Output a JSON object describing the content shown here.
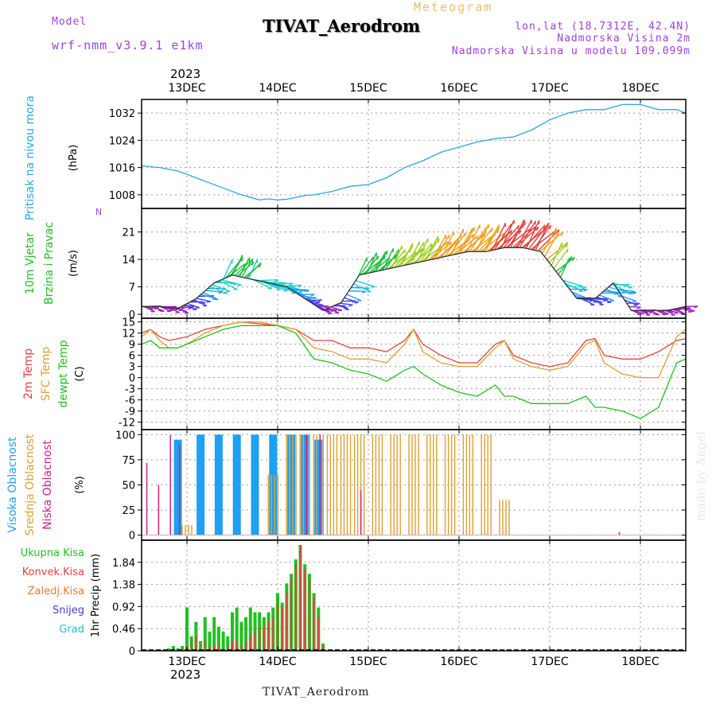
{
  "header": {
    "title": "TIVAT_Aerodrom",
    "meteogram": "Meteogram",
    "model_label": "Model",
    "model_name": "wrf-nmm_v3.9.1  e1km",
    "lonlat": "lon,lat (18.7312E, 42.4N)",
    "elevation": "Nadmorska Visina 2m",
    "model_elevation": "Nadmorska Visina u modelu 109.099m",
    "made_by": "made by Angel",
    "footer": "TIVAT_Aerodrom",
    "year_top": "2023",
    "year_bottom": "2023"
  },
  "colors": {
    "pressure": "#2aa6e6",
    "t2m": "#e84040",
    "sfc": "#e0a030",
    "dewpt": "#20c020",
    "high_cloud": "#20a0f0",
    "mid_cloud": "#e0a030",
    "low_cloud": "#d0208a",
    "total_precip": "#20c020",
    "conv_precip": "#e84040"
  },
  "chart_data": [
    {
      "type": "line",
      "name": "pressure",
      "ylabel_lines": [
        "Pritisak na nivou mora",
        "(hPa)"
      ],
      "days": [
        "13DEC",
        "14DEC",
        "15DEC",
        "16DEC",
        "17DEC",
        "18DEC"
      ],
      "yticks": [
        "1008",
        "1016",
        "1024",
        "1032"
      ],
      "ylim": [
        1004,
        1036
      ],
      "xlim": [
        -0.5,
        5.5
      ],
      "x": [
        -0.5,
        -0.3,
        -0.1,
        0.0,
        0.2,
        0.4,
        0.6,
        0.8,
        0.9,
        1.0,
        1.1,
        1.2,
        1.3,
        1.4,
        1.6,
        1.8,
        2.0,
        2.2,
        2.4,
        2.6,
        2.8,
        3.0,
        3.2,
        3.4,
        3.6,
        3.8,
        4.0,
        4.2,
        4.4,
        4.6,
        4.8,
        5.0,
        5.2,
        5.4,
        5.5
      ],
      "values": [
        1016.5,
        1016,
        1015,
        1014,
        1012,
        1010,
        1008,
        1006.5,
        1006.8,
        1006.5,
        1006.7,
        1007.2,
        1007.8,
        1008,
        1009,
        1010.5,
        1011,
        1013,
        1016,
        1018,
        1020.5,
        1022,
        1023.5,
        1024.5,
        1025,
        1027,
        1030,
        1032,
        1033,
        1033,
        1034.5,
        1034.5,
        1033,
        1033,
        1032
      ]
    },
    {
      "type": "scatter",
      "name": "wind",
      "ylabel_lines": [
        "10m Vjetar",
        "Brzina i Pravac",
        "(m/s)"
      ],
      "compass": "N",
      "yticks": [
        "0",
        "7",
        "14",
        "21"
      ],
      "ylim": [
        -1,
        27
      ],
      "xlim": [
        -0.5,
        5.5
      ],
      "x": [
        -0.5,
        -0.3,
        -0.1,
        0.1,
        0.3,
        0.5,
        0.7,
        0.9,
        1.1,
        1.3,
        1.5,
        1.7,
        1.9,
        2.1,
        2.3,
        2.5,
        2.7,
        2.9,
        3.1,
        3.3,
        3.5,
        3.7,
        3.9,
        4.1,
        4.3,
        4.5,
        4.7,
        4.9,
        5.1,
        5.3,
        5.5
      ],
      "speed": [
        2,
        2,
        1.5,
        4,
        8,
        10,
        9,
        8,
        7,
        4,
        1,
        3,
        10,
        11,
        12,
        13,
        14,
        15,
        16,
        16,
        17,
        17,
        16,
        10,
        4,
        4,
        8,
        1,
        1,
        1,
        2
      ]
    },
    {
      "type": "line",
      "name": "temperature",
      "ylabel_lines": [
        "2m Temp",
        "SFC Temp",
        "dewpt Temp",
        "(C)"
      ],
      "yticks": [
        "15",
        "12",
        "9",
        "6",
        "3",
        "0",
        "-3",
        "-6",
        "-9",
        "-12"
      ],
      "ylim": [
        -14,
        16
      ],
      "xlim": [
        -0.5,
        5.5
      ],
      "x": [
        -0.5,
        -0.4,
        -0.3,
        -0.2,
        -0.1,
        0.0,
        0.2,
        0.4,
        0.6,
        0.8,
        1.0,
        1.2,
        1.4,
        1.6,
        1.7,
        1.8,
        2.0,
        2.2,
        2.4,
        2.5,
        2.6,
        2.8,
        3.0,
        3.2,
        3.4,
        3.5,
        3.6,
        3.8,
        4.0,
        4.2,
        4.4,
        4.5,
        4.6,
        4.8,
        5.0,
        5.2,
        5.4,
        5.5
      ],
      "series": [
        {
          "name": "2m Temp",
          "values": [
            12,
            13,
            11,
            10,
            10.5,
            11,
            13,
            14,
            15,
            14.5,
            14,
            13,
            10,
            10,
            9,
            8,
            8,
            7,
            10,
            13,
            9,
            6,
            4,
            4,
            9,
            10,
            6,
            4,
            3,
            4,
            10,
            10.5,
            6,
            5,
            5,
            7,
            10,
            10.5
          ]
        },
        {
          "name": "SFC Temp",
          "values": [
            11,
            13,
            10,
            8,
            8,
            9,
            12,
            14,
            15,
            15,
            14,
            13,
            8,
            7,
            6,
            5,
            5,
            4,
            9,
            13,
            7,
            4,
            3,
            3,
            8,
            10,
            5,
            3,
            2,
            3,
            9,
            10,
            4,
            1,
            0,
            0,
            11,
            13
          ]
        },
        {
          "name": "dewpt Temp",
          "values": [
            9,
            10,
            8,
            8,
            8,
            9,
            11,
            13,
            14,
            14,
            14,
            12,
            5,
            4,
            3,
            2,
            1,
            -1,
            2,
            3,
            1,
            -2,
            -4,
            -5,
            -2,
            -5,
            -5,
            -7,
            -7,
            -7,
            -5,
            -8,
            -8,
            -9,
            -11,
            -8,
            4,
            5
          ]
        }
      ]
    },
    {
      "type": "bar",
      "name": "clouds",
      "ylabel_lines": [
        "Visoka Oblacnost",
        "Srednja Oblacnost",
        "Niska Oblacnost",
        "(%)"
      ],
      "yticks": [
        "0",
        "25",
        "50",
        "75",
        "100"
      ],
      "ylim": [
        -5,
        105
      ],
      "xlim": [
        -0.5,
        5.5
      ],
      "x": [
        -0.46,
        -0.33,
        -0.2,
        -0.1,
        0.0,
        0.15,
        0.35,
        0.55,
        0.75,
        0.95,
        1.15,
        1.3,
        1.45,
        1.6,
        1.75,
        1.9,
        2.1,
        2.3,
        2.5,
        2.7,
        2.9,
        3.1,
        3.3,
        3.5,
        3.75,
        4.0,
        4.25,
        4.5,
        4.75,
        5.0,
        5.25,
        5.45
      ],
      "series": [
        {
          "name": "Visoka Oblacnost",
          "values": [
            0,
            0,
            0,
            95,
            0,
            100,
            100,
            100,
            100,
            100,
            100,
            100,
            95,
            0,
            0,
            0,
            0,
            0,
            0,
            0,
            0,
            0,
            0,
            0,
            0,
            0,
            0,
            0,
            0,
            0,
            0,
            0
          ]
        },
        {
          "name": "Srednja Oblacnost",
          "values": [
            0,
            0,
            0,
            0,
            10,
            0,
            0,
            0,
            0,
            60,
            100,
            100,
            100,
            100,
            100,
            100,
            100,
            100,
            100,
            100,
            100,
            100,
            100,
            35,
            0,
            0,
            0,
            0,
            0,
            0,
            0,
            0
          ]
        },
        {
          "name": "Niska Oblacnost",
          "values": [
            72,
            50,
            100,
            90,
            0,
            0,
            0,
            0,
            0,
            0,
            0,
            100,
            100,
            0,
            0,
            45,
            0,
            0,
            0,
            0,
            0,
            0,
            0,
            0,
            0,
            0,
            0,
            0,
            3,
            0,
            0,
            0
          ]
        }
      ]
    },
    {
      "type": "bar",
      "name": "precip",
      "ylabel_lines": [
        "1hr Precip (mm)"
      ],
      "legend": [
        "Ukupna Kisa",
        "Konvek.Kisa",
        "Zaledj.Kisa",
        "Snijeg",
        "Grad"
      ],
      "yticks": [
        "0",
        "0.46",
        "0.92",
        "1.38",
        "1.84"
      ],
      "ylim": [
        0,
        2.3
      ],
      "xlim": [
        -0.5,
        5.5
      ],
      "x": [
        -0.2,
        -0.15,
        -0.1,
        -0.05,
        0.0,
        0.05,
        0.1,
        0.15,
        0.2,
        0.25,
        0.3,
        0.35,
        0.4,
        0.45,
        0.5,
        0.55,
        0.6,
        0.65,
        0.7,
        0.75,
        0.8,
        0.85,
        0.9,
        0.95,
        1.0,
        1.05,
        1.1,
        1.15,
        1.2,
        1.25,
        1.3,
        1.35,
        1.4,
        1.45,
        1.5,
        1.55
      ],
      "series": [
        {
          "name": "Ukupna Kisa",
          "values": [
            0.05,
            0.1,
            0.05,
            0.1,
            0.9,
            0.3,
            0.6,
            0.2,
            0.7,
            0.4,
            0.7,
            0.5,
            0.4,
            0.3,
            0.8,
            0.9,
            0.6,
            0.7,
            0.9,
            0.8,
            0.8,
            0.7,
            0.8,
            0.9,
            1.2,
            1.0,
            1.4,
            1.6,
            1.9,
            2.2,
            1.8,
            1.6,
            1.2,
            0.9,
            0.15,
            0.0
          ]
        },
        {
          "name": "Konvek.Kisa",
          "values": [
            0,
            0,
            0,
            0,
            0.1,
            0.2,
            0.3,
            0,
            0.2,
            0.1,
            0.1,
            0.1,
            0,
            0.1,
            0.2,
            0.2,
            0.1,
            0.2,
            0.3,
            0.4,
            0.5,
            0.5,
            0.6,
            0.7,
            1.0,
            0.9,
            1.2,
            1.5,
            1.8,
            2.2,
            1.7,
            1.5,
            1.1,
            0.7,
            0.1,
            0.0
          ]
        }
      ]
    }
  ]
}
